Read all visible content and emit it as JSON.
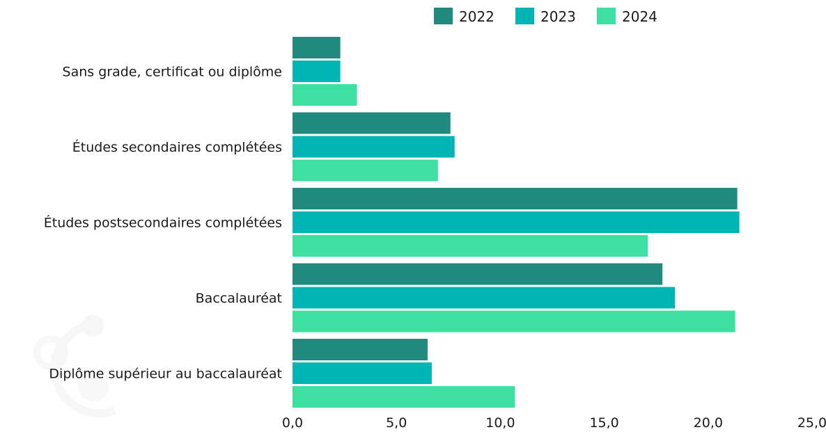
{
  "chart_data": {
    "type": "bar",
    "orientation": "horizontal",
    "categories": [
      "Sans grade, certificat ou diplôme",
      "Études secondaires complétées",
      "Études postsecondaires complétées",
      "Baccalauréat",
      "Diplôme supérieur au baccalauréat"
    ],
    "series": [
      {
        "name": "2022",
        "color": "#1f8a7d",
        "values": [
          2.3,
          7.6,
          21.4,
          17.8,
          6.5
        ]
      },
      {
        "name": "2023",
        "color": "#00b6b4",
        "values": [
          2.3,
          7.8,
          21.5,
          18.4,
          6.7
        ]
      },
      {
        "name": "2024",
        "color": "#3ee0a1",
        "values": [
          3.1,
          7.0,
          17.1,
          21.3,
          10.7
        ]
      }
    ],
    "xlim": [
      0,
      25
    ],
    "xticks": [
      "0,0",
      "5,0",
      "10,0",
      "15,0",
      "20,0",
      "25,0"
    ],
    "legend_position": "top",
    "grid": false
  }
}
